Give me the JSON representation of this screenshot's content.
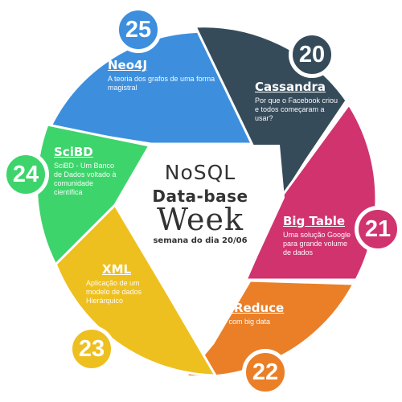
{
  "segments": [
    {
      "id": "neo4j",
      "title": "Neo4J",
      "description": "A teoria dos grafos de uma forma magistral",
      "number": "25",
      "color": "#3d8fde"
    },
    {
      "id": "cassandra",
      "title": "Cassandra",
      "description": "Por que o Facebook criou e todos começaram a usar?",
      "number": "20",
      "color": "#364b5a"
    },
    {
      "id": "bigtable",
      "title": "Big Table",
      "description": "Uma solução Google para grande volume de dados",
      "number": "21",
      "color": "#d1336f"
    },
    {
      "id": "mapreduce",
      "title": "Map Reduce",
      "description": "Lidando com big data",
      "number": "22",
      "color": "#ea7f27"
    },
    {
      "id": "xml",
      "title": "XML",
      "description": "Aplicação de um modelo de dados Hierárquico",
      "number": "23",
      "color": "#eec01f"
    },
    {
      "id": "scibd",
      "title": "SciBD",
      "description": "SciBD - Um Banco de Dados voltado à comunidade científica",
      "number": "24",
      "color": "#3ed46c"
    }
  ],
  "center": {
    "line1": "NoSQL",
    "line2": "Data-base",
    "line3": "Week",
    "line4": "semana do dia 20/06"
  }
}
